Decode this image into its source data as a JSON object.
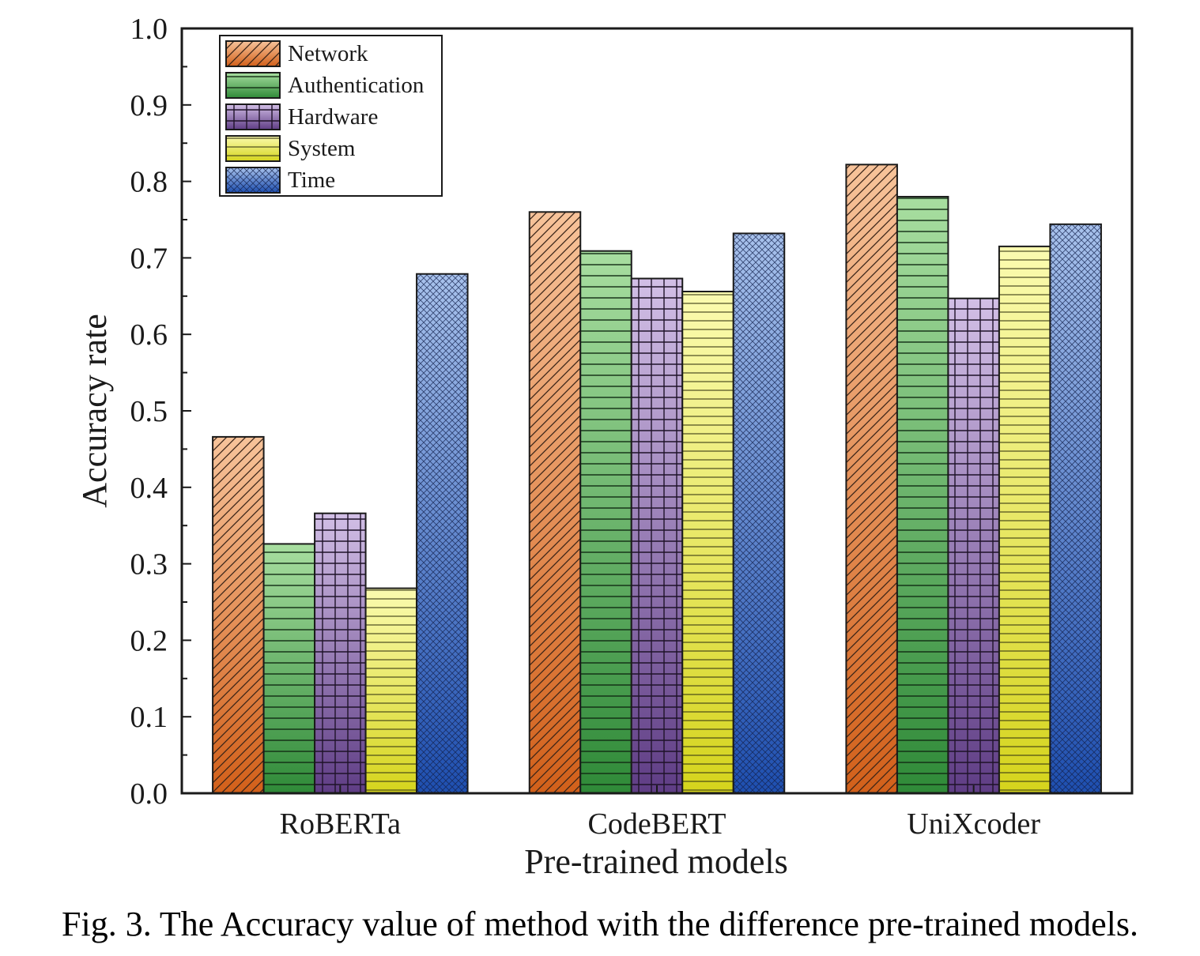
{
  "chart_data": {
    "type": "bar",
    "categories": [
      "RoBERTa",
      "CodeBERT",
      "UniXcoder"
    ],
    "series": [
      {
        "name": "Network",
        "values": [
          0.466,
          0.76,
          0.822
        ]
      },
      {
        "name": "Authentication",
        "values": [
          0.326,
          0.709,
          0.78
        ]
      },
      {
        "name": "Hardware",
        "values": [
          0.366,
          0.673,
          0.647
        ]
      },
      {
        "name": "System",
        "values": [
          0.268,
          0.656,
          0.715
        ]
      },
      {
        "name": "Time",
        "values": [
          0.679,
          0.732,
          0.744
        ]
      }
    ],
    "xlabel": "Pre-trained models",
    "ylabel": "Accuracy rate",
    "ylim": [
      0.0,
      1.0
    ],
    "yticks": [
      "0.0",
      "0.1",
      "0.2",
      "0.3",
      "0.4",
      "0.5",
      "0.6",
      "0.7",
      "0.8",
      "0.9",
      "1.0"
    ],
    "legend_position": "top-left",
    "grid": false,
    "colors": {
      "Network": {
        "top": "#f7c39a",
        "bottom": "#d2601a"
      },
      "Authentication": {
        "top": "#a8dea0",
        "bottom": "#2f8a38"
      },
      "Hardware": {
        "top": "#d2bfe6",
        "bottom": "#5f3d85"
      },
      "System": {
        "top": "#fbfbb0",
        "bottom": "#d5d41c"
      },
      "Time": {
        "top": "#a8c2ec",
        "bottom": "#1e4fb0"
      }
    }
  },
  "caption": "Fig. 3. The Accuracy value of method with the difference pre-trained models."
}
